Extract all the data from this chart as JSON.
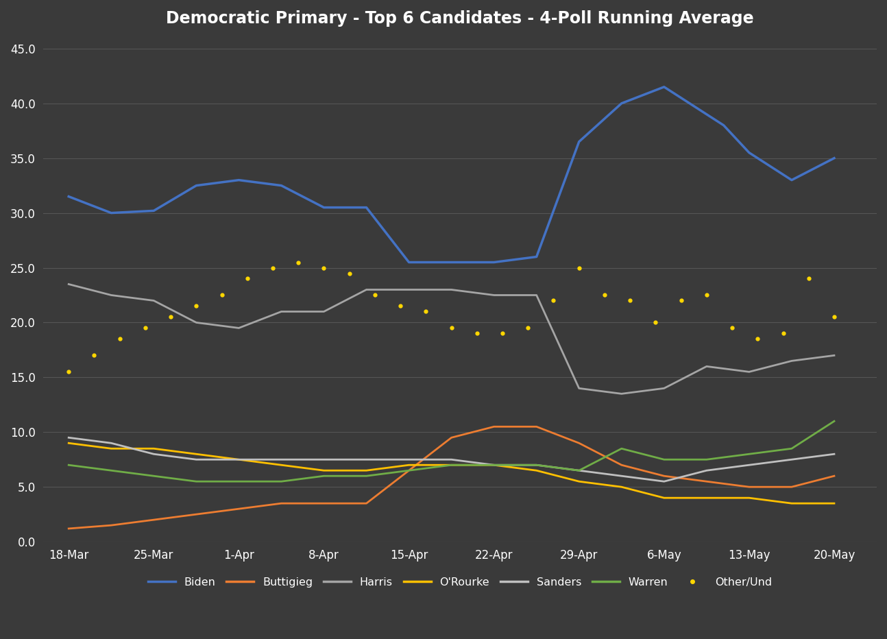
{
  "title": "Democratic Primary - Top 6 Candidates - 4-Poll Running Average",
  "background_color": "#3a3a3a",
  "text_color": "#ffffff",
  "grid_color": "#555555",
  "x_labels": [
    "18-Mar",
    "25-Mar",
    "1-Apr",
    "8-Apr",
    "15-Apr",
    "22-Apr",
    "29-Apr",
    "6-May",
    "13-May",
    "20-May"
  ],
  "y_ticks": [
    0.0,
    5.0,
    10.0,
    15.0,
    20.0,
    25.0,
    30.0,
    35.0,
    40.0,
    45.0
  ],
  "ylim": [
    0.0,
    46.0
  ],
  "n_ticks": 10,
  "series": {
    "Biden": {
      "color": "#4472c4",
      "linestyle": "solid",
      "linewidth": 2.5,
      "x": [
        0,
        0.5,
        1.0,
        1.5,
        2.0,
        2.5,
        3.0,
        3.5,
        4.0,
        4.5,
        5.0,
        5.5,
        6.0,
        6.5,
        7.0,
        7.3,
        7.7,
        8.0,
        8.5,
        9.0
      ],
      "y": [
        31.5,
        30.0,
        30.2,
        32.5,
        33.0,
        32.5,
        30.5,
        30.5,
        25.5,
        25.5,
        25.5,
        26.0,
        36.5,
        40.0,
        41.5,
        40.0,
        38.0,
        35.5,
        33.0,
        35.0
      ]
    },
    "Buttigieg": {
      "color": "#ed7d31",
      "linestyle": "solid",
      "linewidth": 2.0,
      "x": [
        0,
        0.5,
        1.0,
        1.5,
        2.0,
        2.5,
        3.0,
        3.5,
        4.0,
        4.5,
        5.0,
        5.5,
        6.0,
        6.5,
        7.0,
        7.5,
        8.0,
        8.5,
        9.0
      ],
      "y": [
        1.2,
        1.5,
        2.0,
        2.5,
        3.0,
        3.5,
        3.5,
        3.5,
        6.5,
        9.5,
        10.5,
        10.5,
        9.0,
        7.0,
        6.0,
        5.5,
        5.0,
        5.0,
        6.0
      ]
    },
    "Harris": {
      "color": "#a5a5a5",
      "linestyle": "solid",
      "linewidth": 2.0,
      "x": [
        0,
        0.5,
        1.0,
        1.5,
        2.0,
        2.5,
        3.0,
        3.5,
        4.0,
        4.5,
        5.0,
        5.5,
        6.0,
        6.5,
        7.0,
        7.5,
        8.0,
        8.5,
        9.0
      ],
      "y": [
        23.5,
        22.5,
        22.0,
        20.0,
        19.5,
        21.0,
        21.0,
        23.0,
        23.0,
        23.0,
        22.5,
        22.5,
        14.0,
        13.5,
        14.0,
        16.0,
        15.5,
        16.5,
        17.0
      ]
    },
    "O'Rourke": {
      "color": "#ffc000",
      "linestyle": "solid",
      "linewidth": 2.0,
      "x": [
        0,
        0.5,
        1.0,
        1.5,
        2.0,
        2.5,
        3.0,
        3.5,
        4.0,
        4.5,
        5.0,
        5.5,
        6.0,
        6.5,
        7.0,
        7.5,
        8.0,
        8.5,
        9.0
      ],
      "y": [
        9.0,
        8.5,
        8.5,
        8.0,
        7.5,
        7.0,
        6.5,
        6.5,
        7.0,
        7.0,
        7.0,
        6.5,
        5.5,
        5.0,
        4.0,
        4.0,
        4.0,
        3.5,
        3.5
      ]
    },
    "Sanders": {
      "color": "#c0c0c0",
      "linestyle": "solid",
      "linewidth": 2.0,
      "x": [
        0,
        0.5,
        1.0,
        1.5,
        2.0,
        2.5,
        3.0,
        3.5,
        4.0,
        4.5,
        5.0,
        5.5,
        6.0,
        6.5,
        7.0,
        7.5,
        8.0,
        8.5,
        9.0
      ],
      "y": [
        9.5,
        9.0,
        8.0,
        7.5,
        7.5,
        7.5,
        7.5,
        7.5,
        7.5,
        7.5,
        7.0,
        7.0,
        6.5,
        6.0,
        5.5,
        6.5,
        7.0,
        7.5,
        8.0
      ]
    },
    "Warren": {
      "color": "#70ad47",
      "linestyle": "solid",
      "linewidth": 2.0,
      "x": [
        0,
        0.5,
        1.0,
        1.5,
        2.0,
        2.5,
        3.0,
        3.5,
        4.0,
        4.5,
        5.0,
        5.5,
        6.0,
        6.5,
        7.0,
        7.5,
        8.0,
        8.5,
        9.0
      ],
      "y": [
        7.0,
        6.5,
        6.0,
        5.5,
        5.5,
        5.5,
        6.0,
        6.0,
        6.5,
        7.0,
        7.0,
        7.0,
        6.5,
        8.5,
        7.5,
        7.5,
        8.0,
        8.5,
        11.0
      ]
    },
    "Other/Und": {
      "color": "#ffd700",
      "linestyle": "dotted",
      "linewidth": 2.5,
      "x": [
        0,
        0.3,
        0.6,
        0.9,
        1.2,
        1.5,
        1.8,
        2.1,
        2.4,
        2.7,
        3.0,
        3.3,
        3.6,
        3.9,
        4.2,
        4.5,
        4.8,
        5.1,
        5.4,
        5.7,
        6.0,
        6.3,
        6.6,
        6.9,
        7.2,
        7.5,
        7.8,
        8.1,
        8.4,
        8.7,
        9.0
      ],
      "y": [
        15.5,
        17.0,
        18.5,
        19.5,
        20.5,
        21.5,
        22.5,
        24.0,
        25.0,
        25.5,
        25.0,
        24.5,
        22.5,
        21.5,
        21.0,
        19.5,
        19.0,
        19.0,
        19.5,
        22.0,
        25.0,
        22.5,
        22.0,
        20.0,
        22.0,
        22.5,
        19.5,
        18.5,
        19.0,
        24.0,
        20.5
      ]
    }
  },
  "legend_order": [
    "Biden",
    "Buttigieg",
    "Harris",
    "O'Rourke",
    "Sanders",
    "Warren",
    "Other/Und"
  ]
}
